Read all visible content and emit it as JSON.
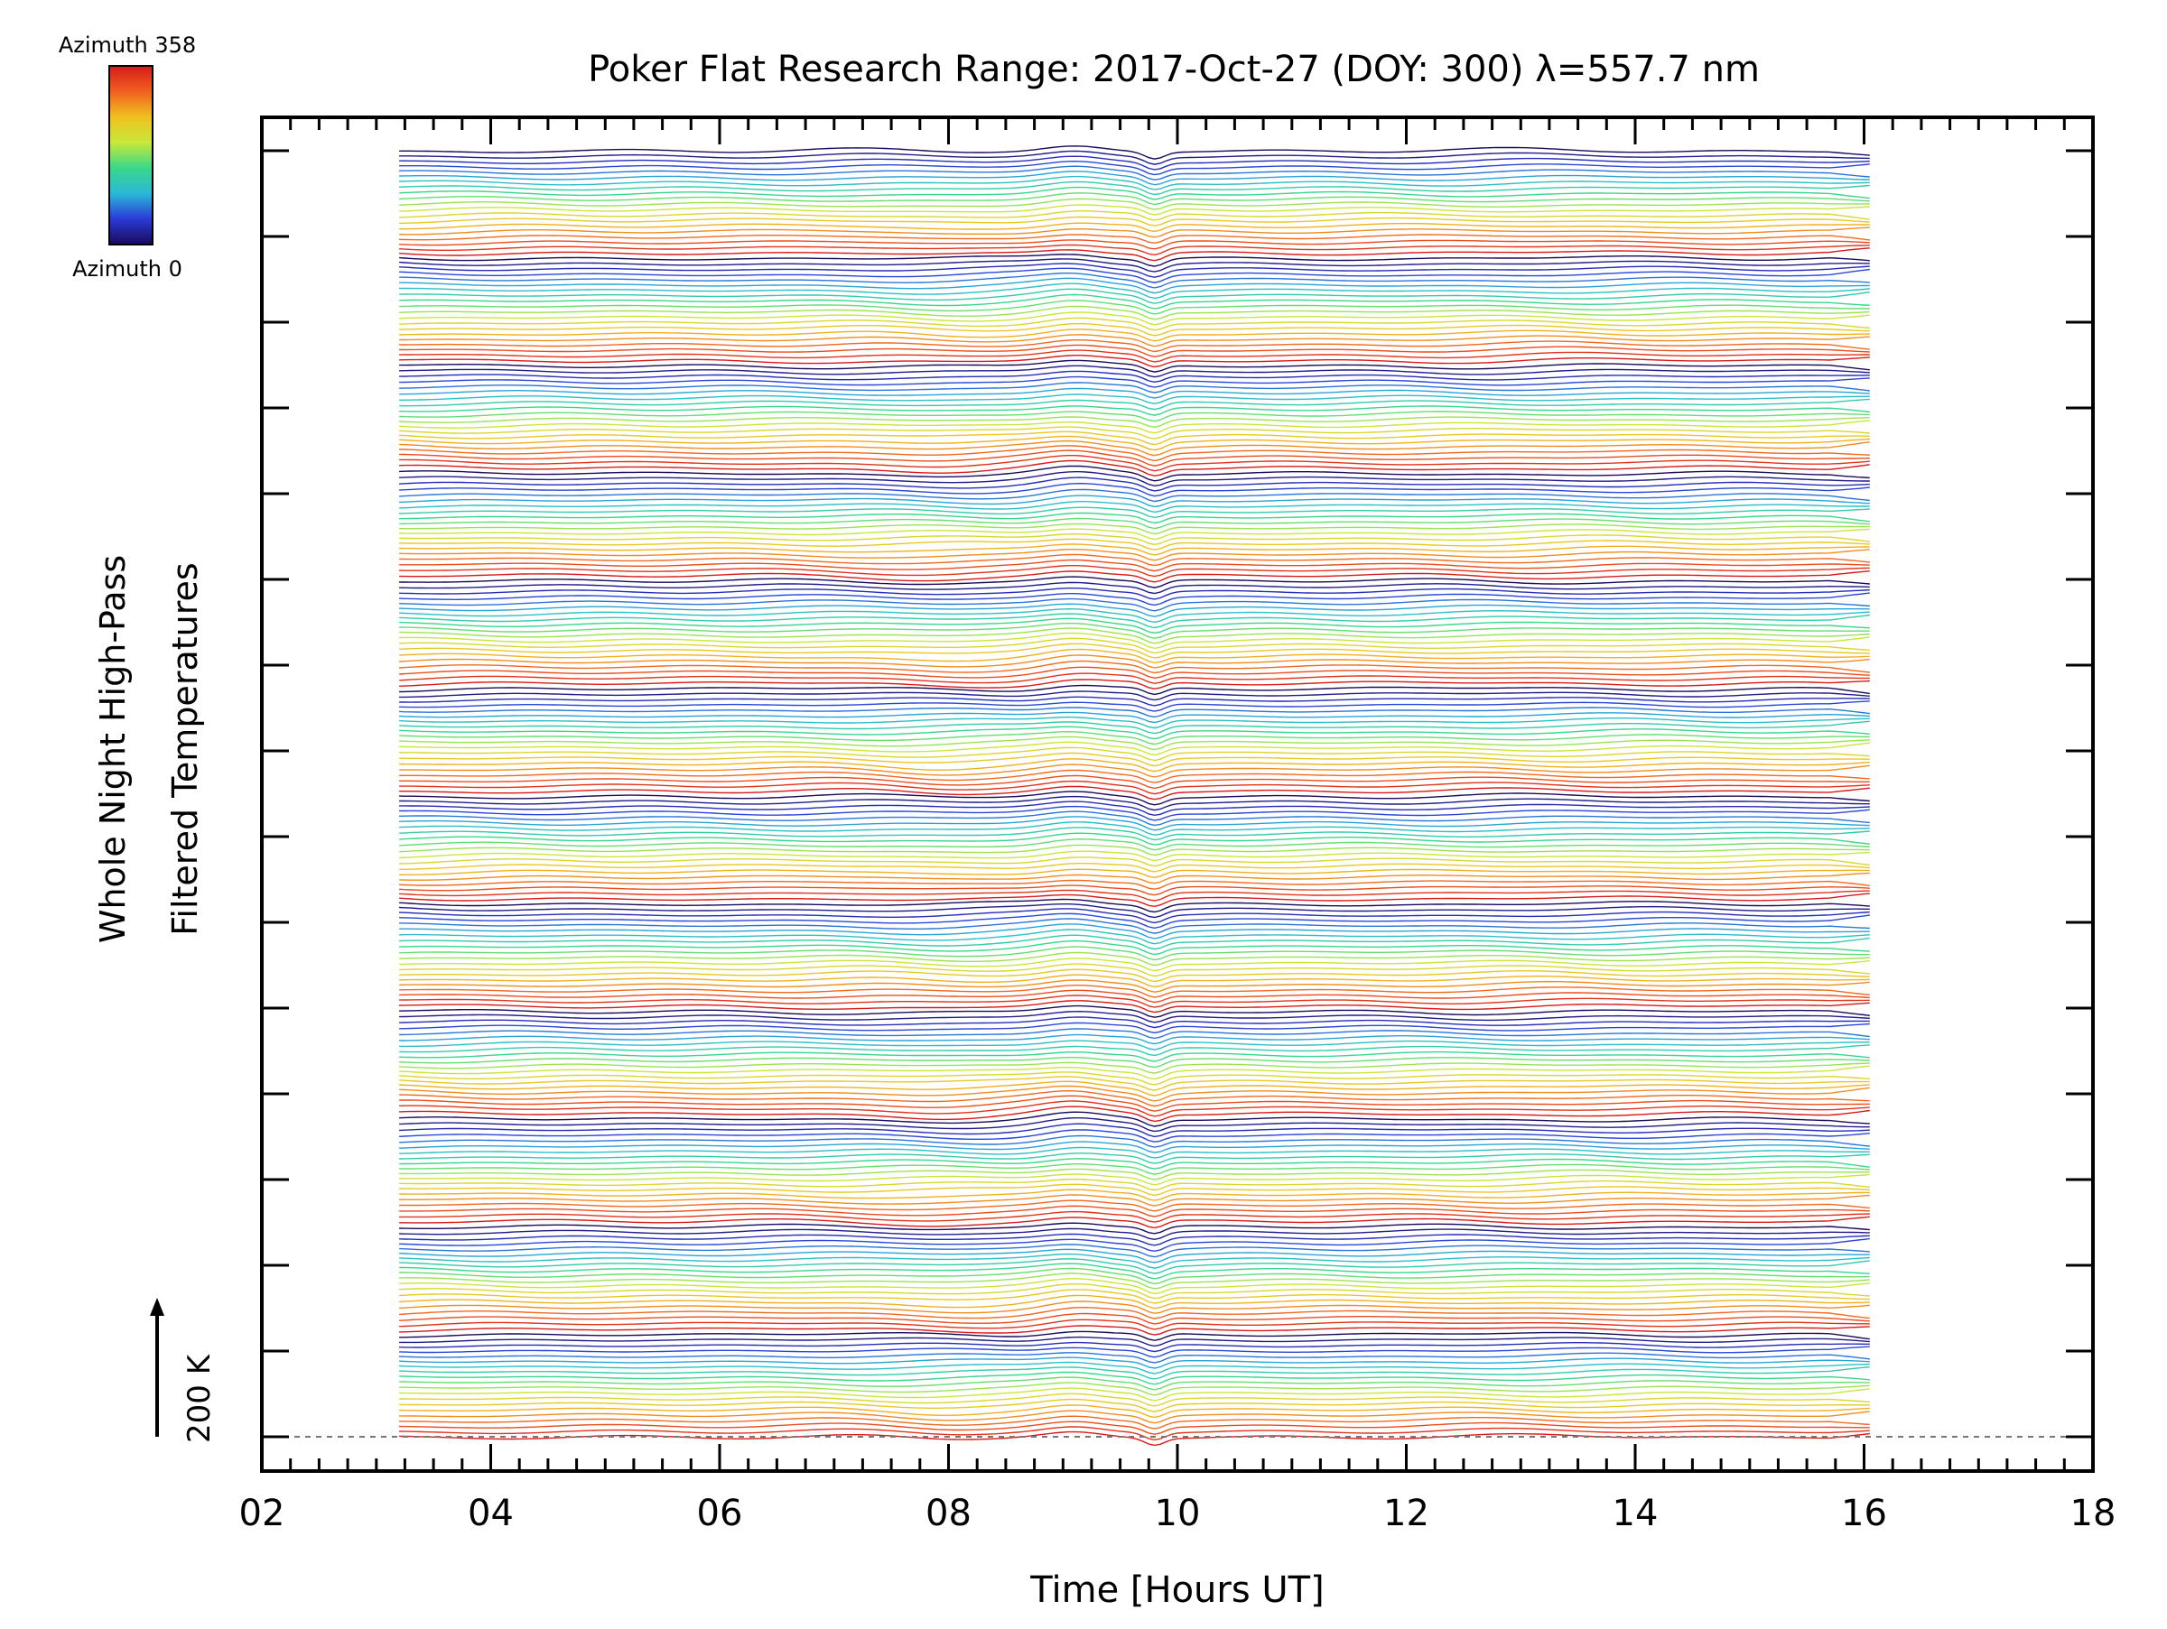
{
  "chart_data": {
    "type": "line",
    "title": "Poker Flat Research Range: 2017-Oct-27 (DOY: 300) λ=557.7 nm",
    "xlabel": "Time [Hours UT]",
    "ylabel_line1": "Whole Night High-Pass",
    "ylabel_line2": "Filtered Temperatures",
    "xlim": [
      2,
      18
    ],
    "x_ticks": [
      "02",
      "04",
      "06",
      "08",
      "10",
      "12",
      "14",
      "16",
      "18"
    ],
    "x_minor_step": 0.25,
    "y_major_tick_count": 16,
    "scale_bar_label": "200 K",
    "time_range": [
      3.2,
      16.05
    ],
    "trace_count": 240,
    "azimuth_range": [
      0,
      358
    ],
    "azimuth_cycle_length": 20,
    "baseline_dashed": true,
    "colorbar": {
      "label_top": "Azimuth 358",
      "label_bottom": "Azimuth 0",
      "colormap": "rainbow",
      "stops": [
        "#1a0a5a",
        "#2a3ad8",
        "#2ab8d8",
        "#3ad88a",
        "#c8e83a",
        "#f0c020",
        "#f06020",
        "#d81a1a"
      ]
    }
  }
}
